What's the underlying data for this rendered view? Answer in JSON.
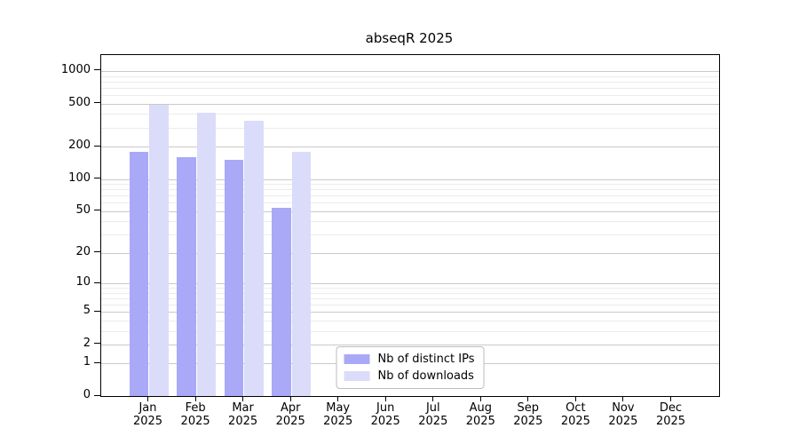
{
  "title": "abseqR 2025",
  "chart_data": {
    "type": "bar",
    "title": "abseqR 2025",
    "scale": "log1p",
    "grid": true,
    "legend_position": "lower center inside",
    "x_categories": [
      "Jan",
      "Feb",
      "Mar",
      "Apr",
      "May",
      "Jun",
      "Jul",
      "Aug",
      "Sep",
      "Oct",
      "Nov",
      "Dec"
    ],
    "x_year_label": "2025",
    "y_major_ticks": [
      0,
      1,
      2,
      5,
      10,
      20,
      50,
      100,
      200,
      500,
      1000
    ],
    "y_minor_ticks": [
      3,
      4,
      6,
      7,
      8,
      9,
      30,
      40,
      60,
      70,
      80,
      90,
      300,
      400,
      600,
      700,
      800,
      900
    ],
    "ylim": [
      0,
      1430
    ],
    "series": [
      {
        "key": "distinct-ips",
        "name": "Nb of distinct IPs",
        "color": "#a9a9f8",
        "values": [
          178,
          160,
          151,
          54,
          null,
          null,
          null,
          null,
          null,
          null,
          null,
          null
        ]
      },
      {
        "key": "downloads",
        "name": "Nb of downloads",
        "color": "#dbdbfa",
        "values": [
          487,
          413,
          347,
          178,
          null,
          null,
          null,
          null,
          null,
          null,
          null,
          null
        ]
      }
    ]
  },
  "colors": {
    "background": "#ffffff",
    "axis": "#000000",
    "major_grid": "#c9c9c9",
    "minor_grid": "#ececec"
  }
}
